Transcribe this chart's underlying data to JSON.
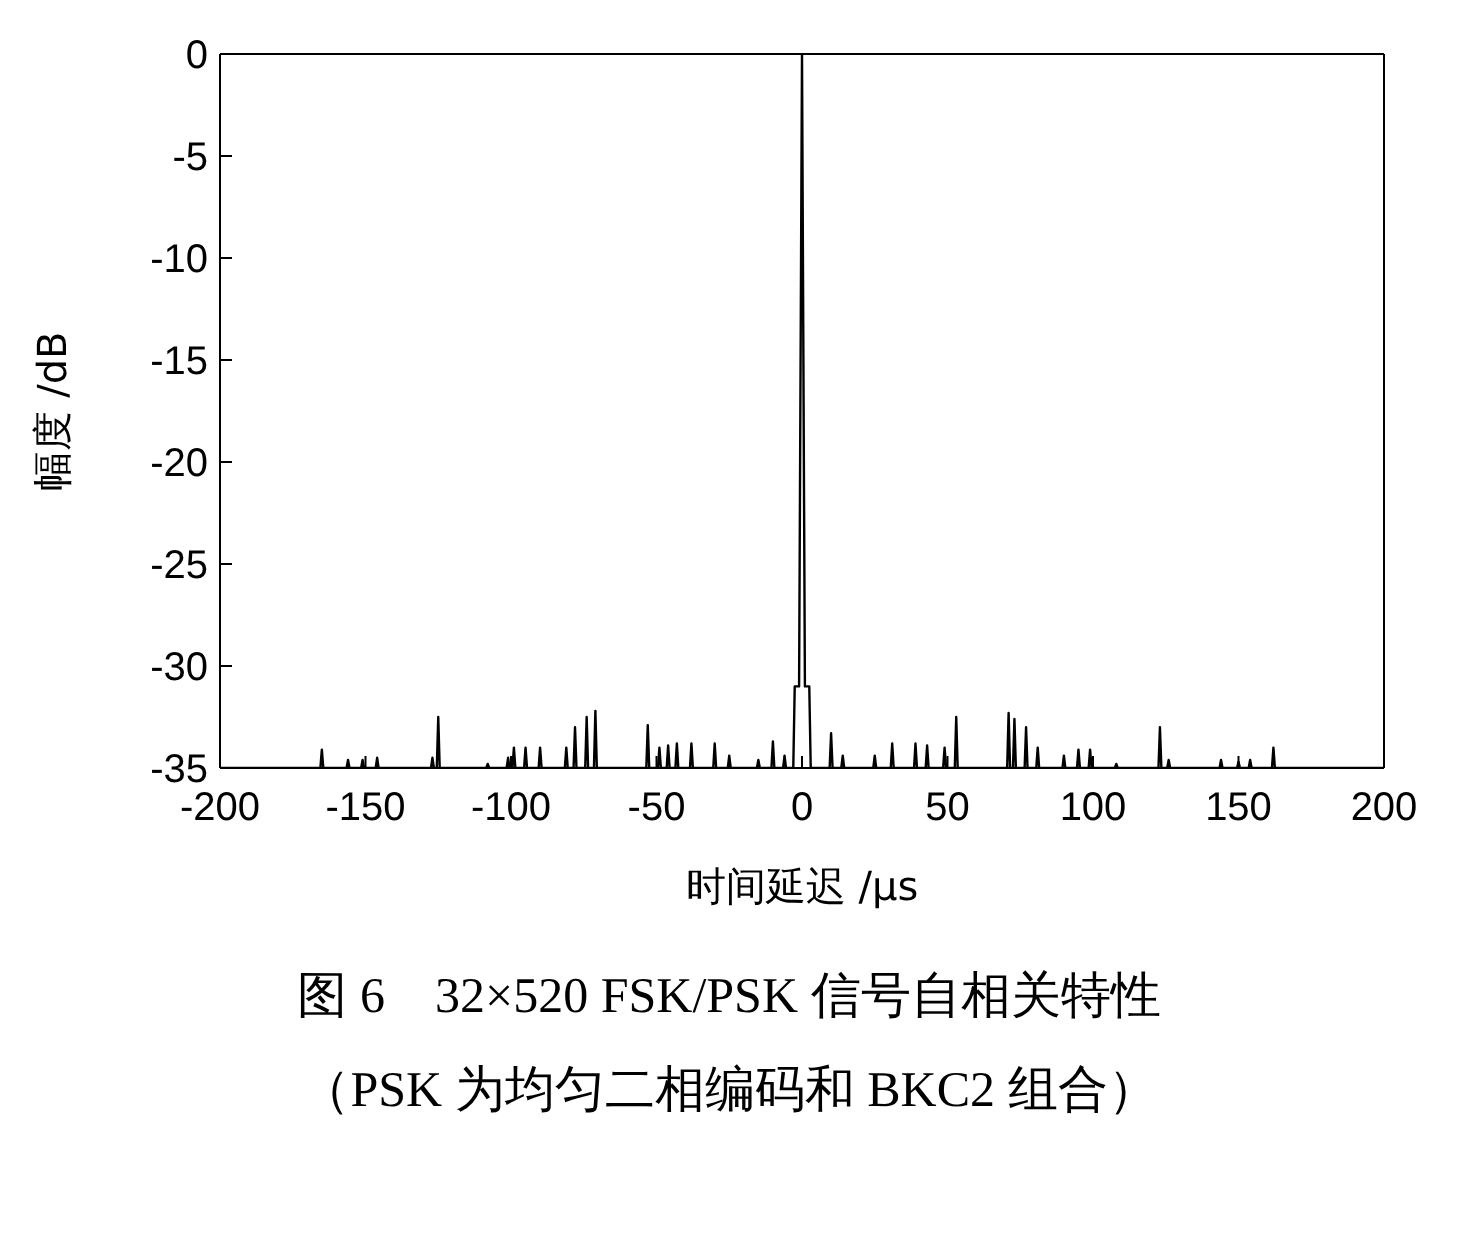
{
  "chart_data": {
    "type": "line",
    "title": "图 6　32×520 FSK/PSK 信号自相关特性",
    "subtitle": "（PSK 为均匀二相编码和 BKC2 组合）",
    "xlabel": "时间延迟 /μs",
    "ylabel": "幅度 /dB",
    "color": "#000000",
    "x": [
      -200,
      -165.5,
      -165,
      -164.5,
      -156.5,
      -156,
      -155.5,
      -151.5,
      -151,
      -150.5,
      -146.5,
      -146,
      -145.5,
      -127.5,
      -127,
      -126.5,
      -125.5,
      -125,
      -124.5,
      -108.5,
      -108,
      -107.5,
      -101.5,
      -101,
      -100.5,
      -99.5,
      -99,
      -98.5,
      -95.5,
      -95,
      -94.5,
      -90.5,
      -90,
      -89.5,
      -81.5,
      -81,
      -80.5,
      -78.5,
      -78,
      -77.5,
      -74.5,
      -74,
      -73.5,
      -71.5,
      -71,
      -70.5,
      -53.5,
      -53,
      -52.5,
      -49.5,
      -49,
      -48.5,
      -46.5,
      -46,
      -45.5,
      -43.5,
      -43,
      -42.5,
      -38.5,
      -38,
      -37.5,
      -30.5,
      -30,
      -29.5,
      -25.5,
      -25,
      -24.5,
      -15.5,
      -15,
      -14.5,
      -10.5,
      -10,
      -9.5,
      -6.5,
      -6,
      -5.5,
      -3,
      -2.5,
      -1,
      0,
      1,
      2.5,
      3,
      9.5,
      10,
      10.5,
      13.5,
      14,
      14.5,
      24.5,
      25,
      25.5,
      30.5,
      31,
      31.5,
      38.5,
      39,
      39.5,
      42.5,
      43,
      43.5,
      48.5,
      49,
      49.5,
      52.5,
      53,
      53.5,
      70.5,
      71,
      71.5,
      72.5,
      73,
      73.5,
      76.5,
      77,
      77.5,
      80.5,
      81,
      81.5,
      89.5,
      90,
      90.5,
      94.5,
      95,
      95.5,
      98.5,
      99,
      99.5,
      107.5,
      108,
      108.5,
      122.5,
      123,
      123.5,
      125.5,
      126,
      126.5,
      143.5,
      144,
      144.5,
      149.5,
      150,
      150.5,
      153.5,
      154,
      154.5,
      161.5,
      162,
      162.5,
      200
    ],
    "values": [
      -35,
      -35,
      -34.1,
      -35,
      -35,
      -34.6,
      -35,
      -35,
      -34.6,
      -35,
      -35,
      -34.5,
      -35,
      -35,
      -34.5,
      -35,
      -35,
      -32.5,
      -35,
      -35,
      -34.8,
      -35,
      -35,
      -34.5,
      -35,
      -35,
      -34,
      -35,
      -35,
      -34,
      -35,
      -35,
      -34,
      -35,
      -35,
      -34,
      -35,
      -35,
      -33,
      -35,
      -35,
      -32.5,
      -35,
      -35,
      -32.2,
      -35,
      -35,
      -32.9,
      -35,
      -35,
      -34,
      -35,
      -35,
      -33.9,
      -35,
      -35,
      -33.8,
      -35,
      -35,
      -33.8,
      -35,
      -35,
      -33.8,
      -35,
      -35,
      -34.4,
      -35,
      -35,
      -34.6,
      -35,
      -35,
      -33.7,
      -35,
      -35,
      -34.4,
      -35,
      -35,
      -31,
      -31,
      0,
      -31,
      -31,
      -35,
      -35,
      -33.3,
      -35,
      -35,
      -34.4,
      -35,
      -35,
      -34.4,
      -35,
      -35,
      -33.8,
      -35,
      -35,
      -33.8,
      -35,
      -35,
      -33.9,
      -35,
      -35,
      -34,
      -35,
      -35,
      -32.5,
      -35,
      -35,
      -32.3,
      -35,
      -35,
      -32.6,
      -35,
      -35,
      -33,
      -35,
      -35,
      -34,
      -35,
      -35,
      -34.4,
      -35,
      -35,
      -34.1,
      -35,
      -35,
      -34.1,
      -35,
      -35,
      -34.8,
      -35,
      -35,
      -33,
      -35,
      -35,
      -34.6,
      -35,
      -35,
      -34.6,
      -35,
      -35,
      -34.7,
      -35,
      -35,
      -34.6,
      -35,
      -35,
      -34,
      -35,
      -35
    ],
    "xlim": [
      -200,
      200
    ],
    "ylim": [
      -35,
      0
    ],
    "xticks": [
      -200,
      -150,
      -100,
      -50,
      0,
      50,
      100,
      150,
      200
    ],
    "yticks": [
      0,
      -5,
      -10,
      -15,
      -20,
      -25,
      -30,
      -35
    ]
  }
}
